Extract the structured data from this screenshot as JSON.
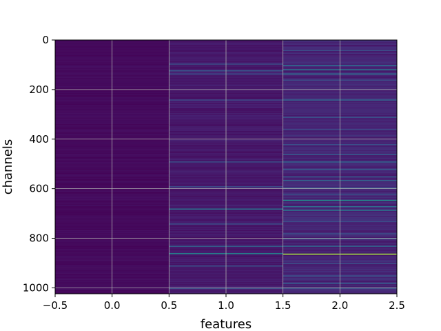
{
  "chart_data": {
    "type": "heatmap",
    "title": "",
    "xlabel": "features",
    "ylabel": "channels",
    "xlim": [
      -0.5,
      2.5
    ],
    "ylim": [
      1024,
      0
    ],
    "x_ticks": [
      "−0.5",
      "0.0",
      "0.5",
      "1.0",
      "1.5",
      "2.0",
      "2.5"
    ],
    "y_ticks": [
      "0",
      "200",
      "400",
      "600",
      "800",
      "1000"
    ],
    "x_tick_values": [
      -0.5,
      0.0,
      0.5,
      1.0,
      1.5,
      2.0,
      2.5
    ],
    "y_tick_values": [
      0,
      200,
      400,
      600,
      800,
      1000
    ],
    "n_channels": 1024,
    "n_features": 3,
    "colormap": "viridis",
    "grid": true,
    "value_range": [
      0,
      1
    ],
    "columns": [
      {
        "feature": 0,
        "base_level": 0.03,
        "highlights": []
      },
      {
        "feature": 1,
        "base_level": 0.08,
        "highlights": [
          {
            "channel": 95,
            "value": 0.3
          },
          {
            "channel": 122,
            "value": 0.35
          },
          {
            "channel": 135,
            "value": 0.3
          },
          {
            "channel": 240,
            "value": 0.28
          },
          {
            "channel": 490,
            "value": 0.3
          },
          {
            "channel": 590,
            "value": 0.28
          },
          {
            "channel": 680,
            "value": 0.45
          },
          {
            "channel": 740,
            "value": 0.3
          },
          {
            "channel": 830,
            "value": 0.4
          },
          {
            "channel": 860,
            "value": 0.55
          },
          {
            "channel": 910,
            "value": 0.3
          },
          {
            "channel": 1000,
            "value": 0.3
          }
        ]
      },
      {
        "feature": 2,
        "base_level": 0.12,
        "highlights": [
          {
            "channel": 40,
            "value": 0.3
          },
          {
            "channel": 100,
            "value": 0.45
          },
          {
            "channel": 118,
            "value": 0.5
          },
          {
            "channel": 135,
            "value": 0.45
          },
          {
            "channel": 160,
            "value": 0.3
          },
          {
            "channel": 240,
            "value": 0.4
          },
          {
            "channel": 310,
            "value": 0.3
          },
          {
            "channel": 360,
            "value": 0.3
          },
          {
            "channel": 420,
            "value": 0.3
          },
          {
            "channel": 460,
            "value": 0.35
          },
          {
            "channel": 490,
            "value": 0.4
          },
          {
            "channel": 520,
            "value": 0.35
          },
          {
            "channel": 550,
            "value": 0.35
          },
          {
            "channel": 565,
            "value": 0.4
          },
          {
            "channel": 595,
            "value": 0.35
          },
          {
            "channel": 620,
            "value": 0.35
          },
          {
            "channel": 645,
            "value": 0.6
          },
          {
            "channel": 670,
            "value": 0.45
          },
          {
            "channel": 685,
            "value": 0.5
          },
          {
            "channel": 730,
            "value": 0.3
          },
          {
            "channel": 780,
            "value": 0.3
          },
          {
            "channel": 800,
            "value": 0.35
          },
          {
            "channel": 830,
            "value": 0.4
          },
          {
            "channel": 862,
            "value": 0.9
          },
          {
            "channel": 900,
            "value": 0.3
          },
          {
            "channel": 950,
            "value": 0.3
          },
          {
            "channel": 980,
            "value": 0.35
          },
          {
            "channel": 1000,
            "value": 0.3
          }
        ]
      }
    ]
  }
}
